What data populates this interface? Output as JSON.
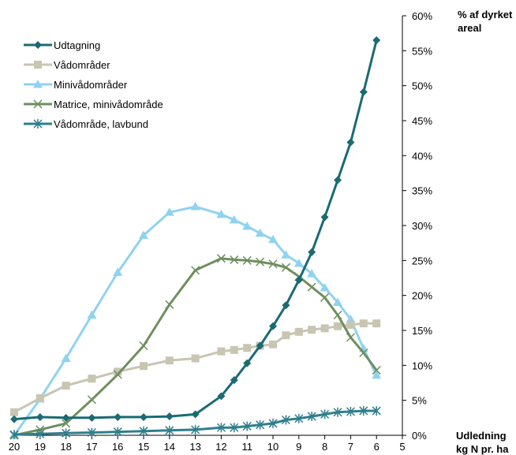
{
  "chart_data": {
    "type": "line",
    "title": "",
    "xlabel": "Udledning kg N pr. ha",
    "xlabel_lines": [
      "Udledning",
      "kg N pr. ha"
    ],
    "ylabel": "% af dyrket areal",
    "ylabel_lines": [
      "% af dyrket",
      "areal"
    ],
    "x_axis_reversed": true,
    "xlim": [
      20,
      5
    ],
    "ylim": [
      0,
      60
    ],
    "x_ticks": [
      20,
      19,
      18,
      17,
      16,
      15,
      14,
      13,
      12,
      11,
      10,
      9,
      8,
      7,
      6,
      5
    ],
    "y_ticks": [
      "0%",
      "5%",
      "10%",
      "15%",
      "20%",
      "25%",
      "30%",
      "35%",
      "40%",
      "45%",
      "50%",
      "55%",
      "60%"
    ],
    "y_axis_position": "right",
    "grid": false,
    "legend_position": "top-left",
    "x": [
      20,
      19,
      18,
      17,
      16,
      15,
      14,
      13,
      12,
      11.5,
      11,
      10.5,
      10,
      9.5,
      9,
      8.5,
      8,
      7.5,
      7,
      6.5,
      6
    ],
    "series": [
      {
        "name": "Udtagning",
        "color": "#1a6b73",
        "marker": "diamond",
        "values": [
          2.3,
          2.6,
          2.5,
          2.5,
          2.6,
          2.6,
          2.7,
          3.0,
          5.6,
          7.9,
          10.3,
          12.8,
          15.6,
          18.6,
          22.2,
          26.2,
          31.2,
          36.5,
          41.9,
          49.1,
          56.5
        ]
      },
      {
        "name": "Vådområder",
        "color": "#c8c5b2",
        "marker": "square",
        "values": [
          3.3,
          5.3,
          7.1,
          8.1,
          9.1,
          9.9,
          10.7,
          11.0,
          12.0,
          12.2,
          12.5,
          12.8,
          13.0,
          14.3,
          14.8,
          15.1,
          15.3,
          15.6,
          15.8,
          16.0,
          16.0
        ]
      },
      {
        "name": "Minivådområder",
        "color": "#8fd3f0",
        "marker": "triangle",
        "values": [
          0.0,
          5.2,
          11.0,
          17.2,
          23.3,
          28.6,
          31.9,
          32.7,
          31.6,
          30.8,
          29.9,
          28.9,
          28.0,
          25.8,
          24.6,
          23.1,
          21.1,
          19.0,
          16.6,
          12.4,
          8.6
        ]
      },
      {
        "name": "Matrice, minivådområde",
        "color": "#6e8f5e",
        "marker": "x",
        "values": [
          0.0,
          0.8,
          1.7,
          5.1,
          8.7,
          12.8,
          18.7,
          23.6,
          25.3,
          25.1,
          25.0,
          24.8,
          24.5,
          24.0,
          22.7,
          21.2,
          19.7,
          17.2,
          14.0,
          11.8,
          9.3
        ]
      },
      {
        "name": "Vådområde, lavbund",
        "color": "#2e7f8c",
        "marker": "asterisk",
        "values": [
          0.1,
          0.2,
          0.3,
          0.4,
          0.5,
          0.6,
          0.7,
          0.8,
          1.1,
          1.1,
          1.3,
          1.5,
          1.7,
          2.2,
          2.4,
          2.7,
          3.0,
          3.3,
          3.4,
          3.5,
          3.5
        ]
      }
    ]
  }
}
